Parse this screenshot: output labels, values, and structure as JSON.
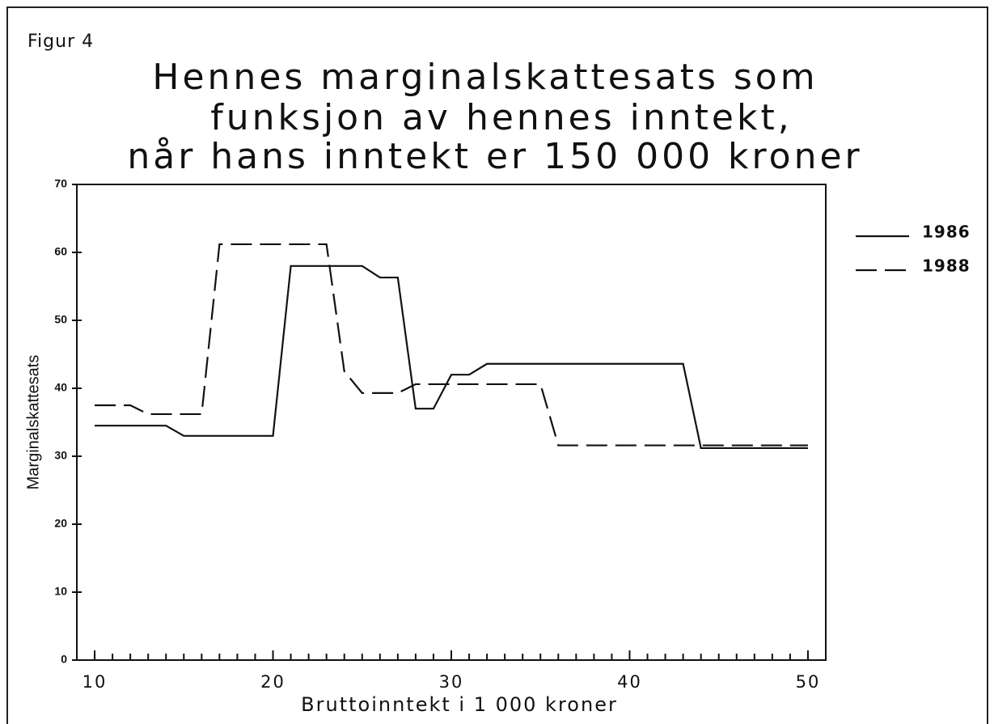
{
  "chart_data": {
    "type": "line",
    "figure_label": "Figur 4",
    "title": [
      "Hennes marginalskattesats som",
      "funksjon av hennes inntekt,",
      "når hans inntekt er 150 000 kroner"
    ],
    "x_label": "Bruttoinntekt i 1 000 kroner",
    "y_label": "Marginalskattesats",
    "x": [
      10,
      11,
      12,
      13,
      14,
      15,
      16,
      17,
      18,
      19,
      20,
      21,
      22,
      23,
      24,
      25,
      26,
      27,
      28,
      29,
      30,
      31,
      32,
      33,
      34,
      35,
      36,
      37,
      38,
      39,
      40,
      41,
      42,
      43,
      44,
      45,
      46,
      47,
      48,
      49,
      50
    ],
    "series": [
      {
        "name": "1986",
        "color": "#111111",
        "dash": false,
        "values": [
          34.5,
          34.5,
          34.5,
          34.5,
          34.5,
          33,
          33,
          33,
          33,
          33,
          33,
          58,
          58,
          58,
          58,
          58,
          56.3,
          56.3,
          37,
          37,
          42,
          42,
          43.6,
          43.6,
          43.6,
          43.6,
          43.6,
          43.6,
          43.6,
          43.6,
          43.6,
          43.6,
          43.6,
          43.6,
          31.2,
          31.2,
          31.2,
          31.2,
          31.2,
          31.2,
          31.2
        ]
      },
      {
        "name": "1988",
        "color": "#111111",
        "dash": true,
        "values": [
          37.5,
          37.5,
          37.5,
          36.2,
          36.2,
          36.2,
          36.2,
          61.2,
          61.2,
          61.2,
          61.2,
          61.2,
          61.2,
          61.2,
          42.5,
          39.3,
          39.3,
          39.3,
          40.6,
          40.6,
          40.6,
          40.6,
          40.6,
          40.6,
          40.6,
          40.6,
          31.6,
          31.6,
          31.6,
          31.6,
          31.6,
          31.6,
          31.6,
          31.6,
          31.6,
          31.6,
          31.6,
          31.6,
          31.6,
          31.6,
          31.6
        ]
      }
    ],
    "xlim": [
      9,
      51
    ],
    "xticks": [
      10,
      20,
      30,
      40,
      50
    ],
    "ylim": [
      0,
      70
    ],
    "yticks": [
      0,
      10,
      20,
      30,
      40,
      50,
      60,
      70
    ],
    "legend": "right"
  }
}
